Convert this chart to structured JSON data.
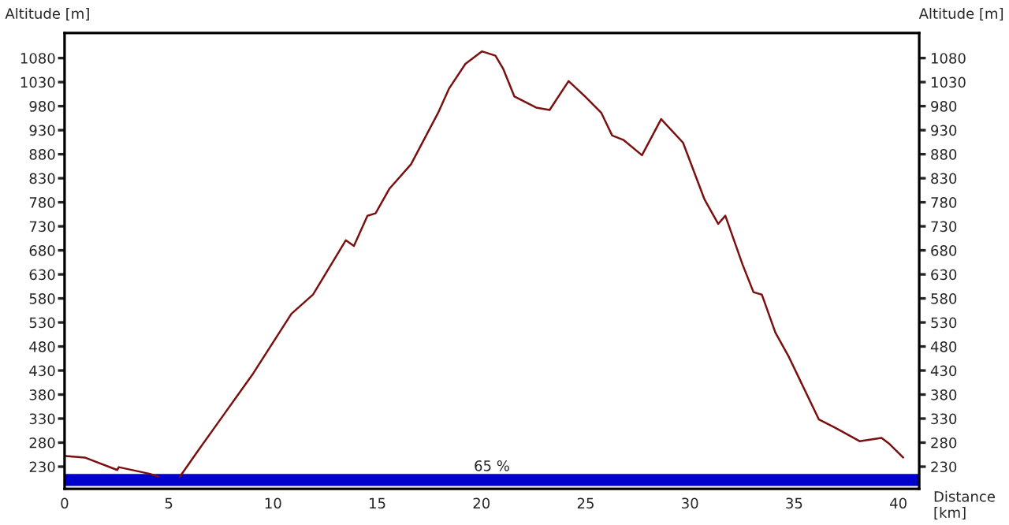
{
  "chart_data": {
    "type": "line",
    "ylabel": "Altitude [m]",
    "y2label": "Altitude [m]",
    "xlabel": "Distance\n[km]",
    "x": [
      0.05,
      0.97,
      2.53,
      2.6,
      4.1,
      4.49,
      5.0,
      5.53,
      6.45,
      7.75,
      9.05,
      10.88,
      11.92,
      13.49,
      13.88,
      14.53,
      14.92,
      15.58,
      16.62,
      17.92,
      18.45,
      19.23,
      20.02,
      20.67,
      21.05,
      21.58,
      22.62,
      23.27,
      24.18,
      24.97,
      25.75,
      26.27,
      26.8,
      27.7,
      28.62,
      29.67,
      30.7,
      31.36,
      31.7,
      32.53,
      33.05,
      33.45,
      34.1,
      34.75,
      36.19,
      36.97,
      38.14,
      39.19,
      39.58,
      40.23
    ],
    "series": [
      {
        "color": "#7a1010",
        "values": [
          252,
          249,
          223,
          229,
          215,
          209,
          null,
          209,
          266,
          345,
          424,
          548,
          588,
          701,
          689,
          752,
          757,
          808,
          859,
          966,
          1017,
          1068,
          1094,
          1085,
          1057,
          1000,
          977,
          972,
          1032,
          1000,
          966,
          919,
          910,
          878,
          953,
          904,
          786,
          735,
          752,
          650,
          593,
          588,
          509,
          458,
          328,
          311,
          283,
          290,
          277,
          249
        ]
      }
    ],
    "xlim": [
      0,
      41
    ],
    "xticks": [
      0,
      5,
      10,
      15,
      20,
      25,
      30,
      35,
      40
    ],
    "ylim": [
      184,
      1132
    ],
    "yticks": [
      230,
      280,
      330,
      380,
      430,
      480,
      530,
      580,
      630,
      680,
      730,
      780,
      830,
      880,
      930,
      980,
      1030,
      1080
    ],
    "y2lim": [
      184,
      1132
    ],
    "y2ticks": [
      230,
      280,
      330,
      380,
      430,
      480,
      530,
      580,
      630,
      680,
      730,
      780,
      830,
      880,
      930,
      980,
      1030,
      1080
    ],
    "bands": [
      {
        "axis": "y",
        "from": 190,
        "to": 215,
        "label": "65 %",
        "color": "#0000cc"
      }
    ],
    "grid": false,
    "legend": false,
    "marker": "none",
    "line_style": "solid"
  }
}
